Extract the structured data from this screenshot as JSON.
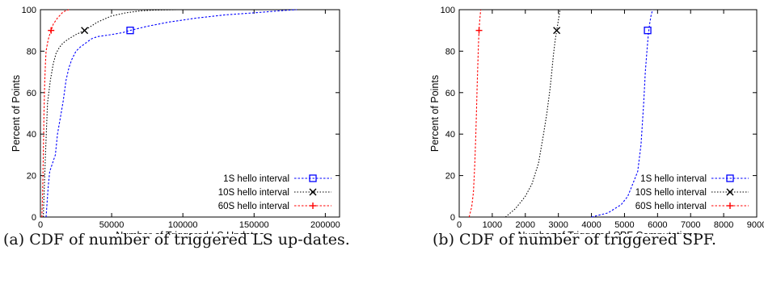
{
  "chart_data": [
    {
      "type": "line",
      "xlabel": "Number of Triggered LS Updates",
      "ylabel": "Percent of Points",
      "xlim": [
        0,
        210000
      ],
      "ylim": [
        0,
        100
      ],
      "xticks": [
        0,
        50000,
        100000,
        150000,
        200000
      ],
      "yticks": [
        0,
        20,
        40,
        60,
        80,
        100
      ],
      "legend_position": "bottom-right",
      "series": [
        {
          "name": "1S hello interval",
          "color": "#0000ff",
          "marker": "square",
          "marker_point": [
            63000,
            90
          ],
          "x": [
            4000,
            5500,
            6500,
            8000,
            10500,
            12000,
            14000,
            16000,
            18000,
            20000,
            22000,
            25000,
            28000,
            32000,
            36000,
            40000,
            50000,
            58000,
            63000,
            75000,
            90000,
            110000,
            130000,
            150000,
            165000,
            175000,
            180000
          ],
          "y": [
            0,
            15,
            22,
            25,
            30,
            40,
            48,
            56,
            66,
            72,
            76,
            80,
            82,
            84,
            86,
            87,
            88,
            89,
            90,
            92,
            94,
            96,
            97.5,
            98.5,
            99.3,
            99.8,
            100
          ]
        },
        {
          "name": "10S hello interval",
          "color": "#000000",
          "marker": "x",
          "marker_point": [
            31000,
            90
          ],
          "x": [
            2000,
            3500,
            5000,
            7000,
            9000,
            11000,
            13500,
            16000,
            20000,
            25000,
            31000,
            40000,
            50000,
            60000,
            70000,
            80000,
            95000
          ],
          "y": [
            0,
            30,
            55,
            66,
            74,
            79,
            82,
            84,
            86,
            88,
            90,
            94,
            97,
            98.5,
            99.4,
            99.8,
            100
          ]
        },
        {
          "name": "60S hello interval",
          "color": "#ff0000",
          "marker": "+",
          "marker_point": [
            7500,
            90
          ],
          "x": [
            1000,
            1500,
            2000,
            2500,
            3000,
            3500,
            4000,
            5000,
            6000,
            7500,
            9000,
            12000,
            16000,
            20000
          ],
          "y": [
            0,
            10,
            28,
            50,
            65,
            74,
            80,
            84,
            87,
            90,
            93,
            96,
            99,
            100
          ]
        }
      ]
    },
    {
      "type": "line",
      "xlabel": "Number of Triggered SPF Computations",
      "ylabel": "Percent of Points",
      "xlim": [
        0,
        9000
      ],
      "ylim": [
        0,
        100
      ],
      "xticks": [
        0,
        1000,
        2000,
        3000,
        4000,
        5000,
        6000,
        7000,
        8000,
        9000
      ],
      "xtick_labels": [
        "0",
        "1000",
        "2000",
        "3000",
        "4000",
        "5000",
        "6000",
        "7000",
        "8000",
        "9000"
      ],
      "yticks": [
        0,
        20,
        40,
        60,
        80,
        100
      ],
      "legend_position": "bottom-right",
      "series": [
        {
          "name": "1S hello interval",
          "color": "#0000ff",
          "marker": "square",
          "marker_point": [
            5700,
            90
          ],
          "x": [
            4000,
            4500,
            4900,
            5100,
            5250,
            5400,
            5500,
            5580,
            5630,
            5680,
            5720,
            5760,
            5800,
            5850
          ],
          "y": [
            0,
            2,
            6,
            10,
            16,
            22,
            35,
            55,
            70,
            80,
            88,
            93,
            97,
            100
          ]
        },
        {
          "name": "10S hello interval",
          "color": "#000000",
          "marker": "x",
          "marker_point": [
            2950,
            90
          ],
          "x": [
            1400,
            1700,
            2000,
            2200,
            2400,
            2550,
            2650,
            2750,
            2800,
            2850,
            2900,
            2950,
            3000,
            3050
          ],
          "y": [
            0,
            4,
            10,
            16,
            26,
            40,
            50,
            62,
            70,
            78,
            85,
            90,
            95,
            100
          ]
        },
        {
          "name": "60S hello interval",
          "color": "#ff0000",
          "marker": "+",
          "marker_point": [
            600,
            90
          ],
          "x": [
            300,
            380,
            430,
            470,
            500,
            520,
            540,
            560,
            580,
            600,
            620,
            650
          ],
          "y": [
            0,
            5,
            12,
            25,
            38,
            50,
            62,
            72,
            82,
            90,
            95,
            100
          ]
        }
      ]
    }
  ],
  "captions": {
    "a": "(a) CDF of number of triggered LS up-dates.",
    "b": "(b) CDF of number of triggered SPF."
  }
}
